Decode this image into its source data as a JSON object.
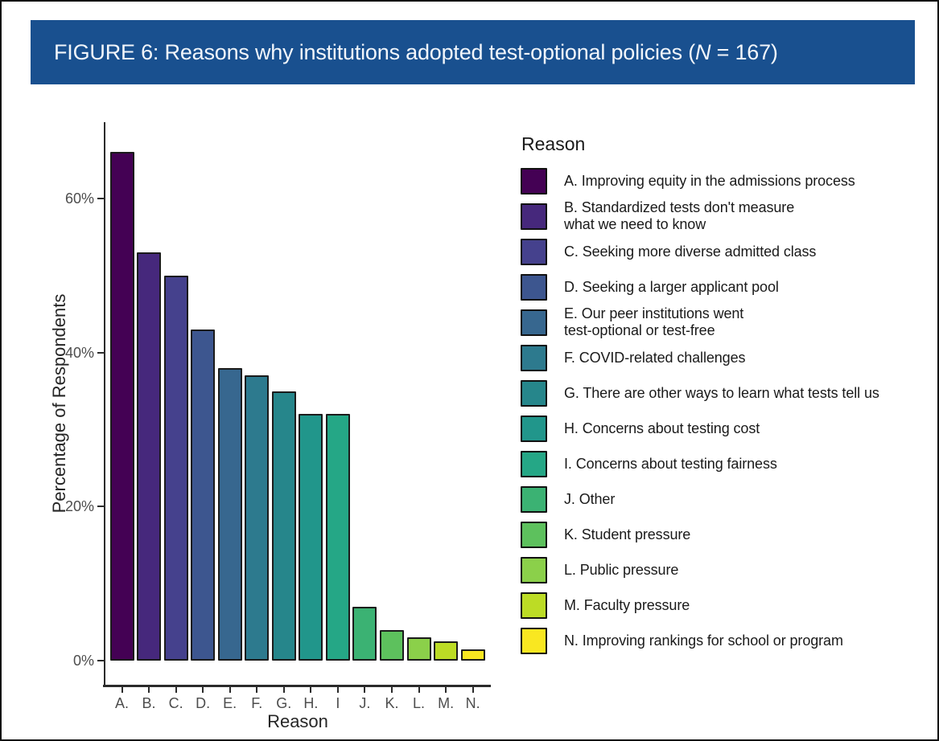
{
  "figure_title": {
    "prefix": "FIGURE 6: Reasons why institutions adopted test-optional policies (",
    "italic": "N",
    "suffix": " = 167)"
  },
  "chart_data": {
    "type": "bar",
    "title": "FIGURE 6: Reasons why institutions adopted test-optional policies (N = 167)",
    "xlabel": "Reason",
    "ylabel": "Percentage of Respondents",
    "legend_title": "Reason",
    "ylim": [
      0,
      70
    ],
    "grid": false,
    "legend_position": "right",
    "y_ticks": [
      {
        "label": "0%",
        "value": 0
      },
      {
        "label": "20%",
        "value": 20
      },
      {
        "label": "40%",
        "value": 40
      },
      {
        "label": "60%",
        "value": 60
      }
    ],
    "categories": [
      "A.",
      "B.",
      "C.",
      "D.",
      "E.",
      "F.",
      "G.",
      "H.",
      "I",
      "J.",
      "K.",
      "L.",
      "M.",
      "N."
    ],
    "items": [
      {
        "key": "A",
        "tick": "A.",
        "value": 66,
        "color": "#440154",
        "label": "A. Improving equity in the admissions process"
      },
      {
        "key": "B",
        "tick": "B.",
        "value": 53,
        "color": "#46287C",
        "label": "B. Standardized tests don't measure\nwhat we need to know"
      },
      {
        "key": "C",
        "tick": "C.",
        "value": 50,
        "color": "#45418D",
        "label": "C. Seeking more diverse admitted class"
      },
      {
        "key": "D",
        "tick": "D.",
        "value": 43,
        "color": "#3D568F",
        "label": "D. Seeking a larger applicant pool"
      },
      {
        "key": "E",
        "tick": "E.",
        "value": 38,
        "color": "#37678F",
        "label": "E. Our peer institutions went\ntest-optional or test-free"
      },
      {
        "key": "F",
        "tick": "F.",
        "value": 37,
        "color": "#2D7A8E",
        "label": "F. COVID-related challenges"
      },
      {
        "key": "G",
        "tick": "G.",
        "value": 35,
        "color": "#26868B",
        "label": "G. There are other ways to learn what tests tell us"
      },
      {
        "key": "H",
        "tick": "H.",
        "value": 32,
        "color": "#21968B",
        "label": "H. Concerns about testing cost"
      },
      {
        "key": "I",
        "tick": "I",
        "value": 32,
        "color": "#25A786",
        "label": "I. Concerns about testing fairness"
      },
      {
        "key": "J",
        "tick": "J.",
        "value": 7,
        "color": "#3BB273",
        "label": "J. Other"
      },
      {
        "key": "K",
        "tick": "K.",
        "value": 4,
        "color": "#5DC15D",
        "label": "K. Student pressure"
      },
      {
        "key": "L",
        "tick": "L.",
        "value": 3,
        "color": "#8BD04A",
        "label": "L. Public pressure"
      },
      {
        "key": "M",
        "tick": "M.",
        "value": 2.5,
        "color": "#BCDC25",
        "label": "M. Faculty pressure"
      },
      {
        "key": "N",
        "tick": "N.",
        "value": 1.5,
        "color": "#F9E721",
        "label": "N. Improving rankings for school or program"
      }
    ]
  }
}
